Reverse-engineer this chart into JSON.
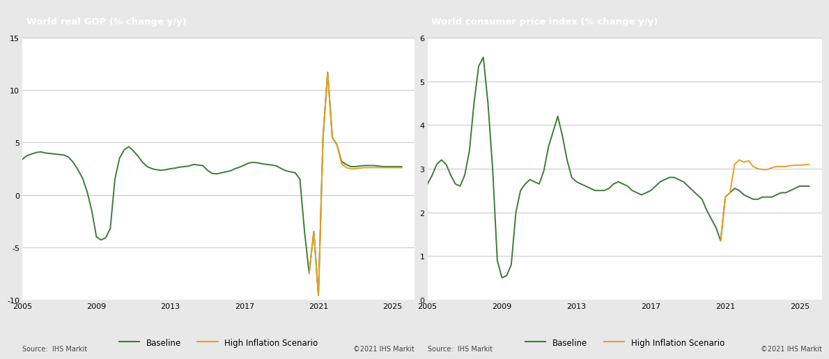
{
  "gdp_title": "World real GDP (% change y/y)",
  "cpi_title": "World consumer price index (% change y/y)",
  "source_left": "Source:  IHS Markit",
  "source_right": "©2021 IHS Markit",
  "title_bg": "#7a7a7a",
  "title_color": "#ffffff",
  "baseline_color": "#3a7d34",
  "scenario_color": "#e8a020",
  "background_color": "#e8e8e8",
  "plot_bg": "#ffffff",
  "legend_baseline": "Baseline",
  "legend_scenario": "High Inflation Scenario",
  "gdp_baseline_x": [
    2005.0,
    2005.25,
    2005.5,
    2005.75,
    2006.0,
    2006.25,
    2006.5,
    2006.75,
    2007.0,
    2007.25,
    2007.5,
    2007.75,
    2008.0,
    2008.25,
    2008.5,
    2008.75,
    2009.0,
    2009.25,
    2009.5,
    2009.75,
    2010.0,
    2010.25,
    2010.5,
    2010.75,
    2011.0,
    2011.25,
    2011.5,
    2011.75,
    2012.0,
    2012.25,
    2012.5,
    2012.75,
    2013.0,
    2013.25,
    2013.5,
    2013.75,
    2014.0,
    2014.25,
    2014.5,
    2014.75,
    2015.0,
    2015.25,
    2015.5,
    2015.75,
    2016.0,
    2016.25,
    2016.5,
    2016.75,
    2017.0,
    2017.25,
    2017.5,
    2017.75,
    2018.0,
    2018.25,
    2018.5,
    2018.75,
    2019.0,
    2019.25,
    2019.5,
    2019.75,
    2020.0,
    2020.25,
    2020.5,
    2020.75,
    2021.0,
    2021.25,
    2021.5,
    2021.75,
    2022.0,
    2022.25,
    2022.5,
    2022.75,
    2023.0,
    2023.25,
    2023.5,
    2023.75,
    2024.0,
    2024.25,
    2024.5,
    2024.75,
    2025.0,
    2025.5
  ],
  "gdp_baseline_y": [
    3.4,
    3.75,
    3.9,
    4.05,
    4.1,
    4.0,
    3.95,
    3.9,
    3.85,
    3.8,
    3.6,
    3.1,
    2.4,
    1.6,
    0.3,
    -1.5,
    -4.0,
    -4.3,
    -4.1,
    -3.2,
    1.5,
    3.5,
    4.3,
    4.6,
    4.2,
    3.7,
    3.1,
    2.7,
    2.5,
    2.4,
    2.35,
    2.4,
    2.5,
    2.55,
    2.65,
    2.7,
    2.75,
    2.9,
    2.85,
    2.8,
    2.35,
    2.05,
    2.0,
    2.1,
    2.2,
    2.3,
    2.5,
    2.65,
    2.85,
    3.05,
    3.1,
    3.05,
    2.95,
    2.9,
    2.85,
    2.75,
    2.5,
    2.3,
    2.2,
    2.1,
    1.5,
    -3.5,
    -7.5,
    -3.5,
    -9.6,
    5.5,
    11.7,
    5.5,
    4.8,
    3.2,
    2.9,
    2.7,
    2.7,
    2.75,
    2.8,
    2.8,
    2.8,
    2.75,
    2.7,
    2.7,
    2.7,
    2.7
  ],
  "gdp_scenario_x": [
    2020.5,
    2020.75,
    2021.0,
    2021.25,
    2021.5,
    2021.75,
    2022.0,
    2022.25,
    2022.5,
    2022.75,
    2023.0,
    2023.25,
    2023.5,
    2023.75,
    2024.0,
    2024.25,
    2024.5,
    2024.75,
    2025.0,
    2025.5
  ],
  "gdp_scenario_y": [
    -7.5,
    -3.5,
    -9.6,
    5.5,
    11.7,
    5.5,
    4.8,
    3.0,
    2.6,
    2.5,
    2.5,
    2.55,
    2.6,
    2.6,
    2.6,
    2.6,
    2.6,
    2.6,
    2.6,
    2.6
  ],
  "gdp_ylim": [
    -10,
    15
  ],
  "gdp_yticks": [
    -10,
    -5,
    0,
    5,
    10,
    15
  ],
  "gdp_xlim": [
    2005,
    2026.2
  ],
  "gdp_xticks": [
    2005,
    2009,
    2013,
    2017,
    2021,
    2025
  ],
  "cpi_baseline_x": [
    2005.0,
    2005.25,
    2005.5,
    2005.75,
    2006.0,
    2006.25,
    2006.5,
    2006.75,
    2007.0,
    2007.25,
    2007.5,
    2007.75,
    2008.0,
    2008.25,
    2008.5,
    2008.75,
    2009.0,
    2009.25,
    2009.5,
    2009.75,
    2010.0,
    2010.25,
    2010.5,
    2010.75,
    2011.0,
    2011.25,
    2011.5,
    2011.75,
    2012.0,
    2012.25,
    2012.5,
    2012.75,
    2013.0,
    2013.25,
    2013.5,
    2013.75,
    2014.0,
    2014.25,
    2014.5,
    2014.75,
    2015.0,
    2015.25,
    2015.5,
    2015.75,
    2016.0,
    2016.25,
    2016.5,
    2016.75,
    2017.0,
    2017.25,
    2017.5,
    2017.75,
    2018.0,
    2018.25,
    2018.5,
    2018.75,
    2019.0,
    2019.25,
    2019.5,
    2019.75,
    2020.0,
    2020.25,
    2020.5,
    2020.75,
    2021.0,
    2021.25,
    2021.5,
    2021.75,
    2022.0,
    2022.25,
    2022.5,
    2022.75,
    2023.0,
    2023.25,
    2023.5,
    2023.75,
    2024.0,
    2024.25,
    2024.5,
    2024.75,
    2025.0,
    2025.5
  ],
  "cpi_baseline_y": [
    2.65,
    2.85,
    3.1,
    3.2,
    3.1,
    2.85,
    2.65,
    2.6,
    2.85,
    3.4,
    4.5,
    5.35,
    5.55,
    4.5,
    3.0,
    0.9,
    0.5,
    0.55,
    0.8,
    2.0,
    2.5,
    2.65,
    2.75,
    2.7,
    2.65,
    2.95,
    3.5,
    3.85,
    4.2,
    3.75,
    3.2,
    2.8,
    2.7,
    2.65,
    2.6,
    2.55,
    2.5,
    2.5,
    2.5,
    2.55,
    2.65,
    2.7,
    2.65,
    2.6,
    2.5,
    2.45,
    2.4,
    2.45,
    2.5,
    2.6,
    2.7,
    2.75,
    2.8,
    2.8,
    2.75,
    2.7,
    2.6,
    2.5,
    2.4,
    2.3,
    2.05,
    1.85,
    1.65,
    1.35,
    2.35,
    2.45,
    2.55,
    2.5,
    2.4,
    2.35,
    2.3,
    2.3,
    2.35,
    2.35,
    2.35,
    2.4,
    2.45,
    2.45,
    2.5,
    2.55,
    2.6,
    2.6
  ],
  "cpi_scenario_x": [
    2020.75,
    2021.0,
    2021.25,
    2021.5,
    2021.75,
    2022.0,
    2022.25,
    2022.5,
    2022.75,
    2023.0,
    2023.25,
    2023.5,
    2023.75,
    2024.0,
    2024.25,
    2024.5,
    2024.75,
    2025.0,
    2025.5
  ],
  "cpi_scenario_y": [
    1.35,
    2.35,
    2.45,
    3.1,
    3.2,
    3.15,
    3.18,
    3.05,
    3.0,
    2.98,
    2.98,
    3.02,
    3.05,
    3.05,
    3.05,
    3.07,
    3.08,
    3.08,
    3.1
  ],
  "cpi_ylim": [
    0,
    6
  ],
  "cpi_yticks": [
    0,
    1,
    2,
    3,
    4,
    5,
    6
  ],
  "cpi_xlim": [
    2005,
    2026.2
  ],
  "cpi_xticks": [
    2005,
    2009,
    2013,
    2017,
    2021,
    2025
  ]
}
